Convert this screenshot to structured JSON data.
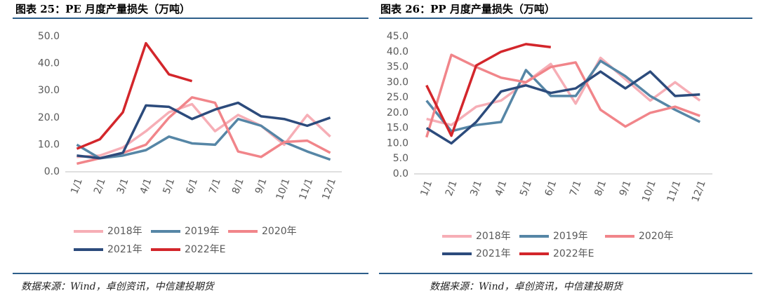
{
  "chart_data": [
    {
      "type": "line",
      "title": "图表 25：PE 月度产量损失（万吨）",
      "source": "数据来源：Wind，卓创资讯，中信建投期货",
      "categories": [
        "1/1",
        "2/1",
        "3/1",
        "4/1",
        "5/1",
        "6/1",
        "7/1",
        "8/1",
        "9/1",
        "10/1",
        "11/1",
        "12/1"
      ],
      "ylim": [
        0,
        50
      ],
      "yticks": [
        {
          "value": 0,
          "label": "0.0"
        },
        {
          "value": 10,
          "label": "10.0"
        },
        {
          "value": 20,
          "label": "20.0"
        },
        {
          "value": 30,
          "label": "30.0"
        },
        {
          "value": 40,
          "label": "40.0"
        },
        {
          "value": 50,
          "label": "50.0"
        }
      ],
      "grid": false,
      "series": [
        {
          "name": "2018年",
          "color": "#f6aeb6",
          "values": [
            5.5,
            6,
            9,
            15,
            22,
            25,
            15,
            21,
            17,
            10,
            21,
            13
          ]
        },
        {
          "name": "2019年",
          "color": "#5686a6",
          "values": [
            10,
            5,
            6,
            8,
            13,
            10.5,
            10,
            19.5,
            17,
            11,
            7.5,
            4.5
          ]
        },
        {
          "name": "2020年",
          "color": "#f1858a",
          "values": [
            3,
            5,
            7,
            10,
            20,
            27.5,
            25.5,
            7.5,
            5.5,
            11,
            11.5,
            7
          ]
        },
        {
          "name": "2021年",
          "color": "#2c4b7c",
          "values": [
            6,
            5,
            7,
            24.5,
            24,
            19.5,
            23,
            25.5,
            20.5,
            19.5,
            17,
            20
          ]
        },
        {
          "name": "2022年E",
          "color": "#d3262b",
          "values": [
            8.5,
            12,
            22,
            47.5,
            36,
            33.5,
            null,
            null,
            null,
            null,
            null,
            null
          ]
        }
      ]
    },
    {
      "type": "line",
      "title": "图表 26：PP 月度产量损失（万吨）",
      "source": "数据来源：Wind，卓创资讯，中信建投期货",
      "categories": [
        "1/1",
        "2/1",
        "3/1",
        "4/1",
        "5/1",
        "6/1",
        "7/1",
        "8/1",
        "9/1",
        "10/1",
        "11/1",
        "12/1"
      ],
      "ylim": [
        0,
        45
      ],
      "yticks": [
        {
          "value": 0,
          "label": "0.0"
        },
        {
          "value": 5,
          "label": "5.0"
        },
        {
          "value": 10,
          "label": "10.0"
        },
        {
          "value": 15,
          "label": "15.0"
        },
        {
          "value": 20,
          "label": "20.0"
        },
        {
          "value": 25,
          "label": "25.0"
        },
        {
          "value": 30,
          "label": "30.0"
        },
        {
          "value": 35,
          "label": "35.0"
        },
        {
          "value": 40,
          "label": "40.0"
        },
        {
          "value": 45,
          "label": "45.0"
        }
      ],
      "grid": false,
      "series": [
        {
          "name": "2018年",
          "color": "#f6aeb6",
          "values": [
            18,
            16,
            22,
            24,
            30,
            36,
            23,
            38,
            31,
            24,
            30,
            24
          ]
        },
        {
          "name": "2019年",
          "color": "#5686a6",
          "values": [
            24,
            14,
            16,
            17,
            34,
            25.5,
            25.5,
            37,
            32,
            25.5,
            21,
            17
          ]
        },
        {
          "name": "2020年",
          "color": "#f1858a",
          "values": [
            12,
            39,
            35,
            31.5,
            30,
            35,
            36.5,
            21,
            15.5,
            20,
            22,
            19
          ]
        },
        {
          "name": "2021年",
          "color": "#2c4b7c",
          "values": [
            15,
            10,
            17,
            27,
            29,
            26.5,
            28,
            33.5,
            28,
            33.5,
            25.5,
            26
          ]
        },
        {
          "name": "2022年E",
          "color": "#d3262b",
          "values": [
            29,
            12.5,
            35.5,
            40,
            42.5,
            41.5,
            null,
            null,
            null,
            null,
            null,
            null
          ]
        }
      ]
    }
  ]
}
